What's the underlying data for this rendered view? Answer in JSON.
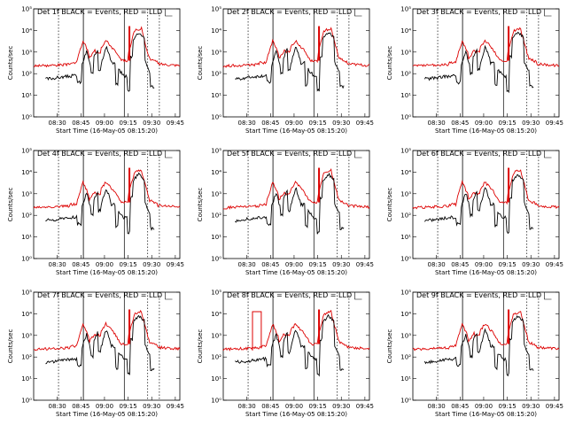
{
  "chart_data": [
    {
      "type": "line",
      "title": "Det 1f BLACK = Events, RED = LLD",
      "ylabel": "Counts/sec",
      "xlabel": "Start Time (16-May-05 08:15:20)",
      "xticks": [
        "08:30",
        "08:45",
        "09:00",
        "09:15",
        "09:30",
        "09:45"
      ],
      "yticks": [
        "10^0",
        "10^1",
        "10^2",
        "10^3",
        "10^4",
        "10^5"
      ],
      "ylim": [
        1,
        100000
      ],
      "yscale": "log",
      "series": [
        {
          "color": "#000000",
          "line": "events"
        },
        {
          "color": "#dd0000",
          "line": "lld"
        }
      ]
    },
    {
      "type": "line",
      "title": "Det 2f BLACK = Events, RED = LLD",
      "ylabel": "Counts/sec",
      "xlabel": "Start Time (16-May-05 08:15:20)",
      "xticks": [
        "08:30",
        "08:45",
        "09:00",
        "09:15",
        "09:30",
        "09:45"
      ],
      "yticks": [
        "10^0",
        "10^1",
        "10^2",
        "10^3",
        "10^4",
        "10^5"
      ],
      "ylim": [
        1,
        100000
      ],
      "yscale": "log",
      "series": [
        {
          "color": "#000000",
          "line": "events"
        },
        {
          "color": "#dd0000",
          "line": "lld"
        }
      ]
    },
    {
      "type": "line",
      "title": "Det 3f BLACK = Events, RED = LLD",
      "ylabel": "Counts/sec",
      "xlabel": "Start Time (16-May-05 08:15:20)",
      "xticks": [
        "08:30",
        "08:45",
        "09:00",
        "09:15",
        "09:30",
        "09:45"
      ],
      "yticks": [
        "10^0",
        "10^1",
        "10^2",
        "10^3",
        "10^4",
        "10^5"
      ],
      "ylim": [
        1,
        100000
      ],
      "yscale": "log",
      "series": [
        {
          "color": "#000000",
          "line": "events"
        },
        {
          "color": "#dd0000",
          "line": "lld"
        }
      ]
    },
    {
      "type": "line",
      "title": "Det 4f BLACK = Events, RED = LLD",
      "ylabel": "Counts/sec",
      "xlabel": "Start Time (16-May-05 08:15:20)",
      "xticks": [
        "08:30",
        "08:45",
        "09:00",
        "09:15",
        "09:30",
        "09:45"
      ],
      "yticks": [
        "10^0",
        "10^1",
        "10^2",
        "10^3",
        "10^4",
        "10^5"
      ],
      "ylim": [
        1,
        100000
      ],
      "yscale": "log",
      "series": [
        {
          "color": "#000000",
          "line": "events"
        },
        {
          "color": "#dd0000",
          "line": "lld"
        }
      ]
    },
    {
      "type": "line",
      "title": "Det 5f BLACK = Events, RED = LLD",
      "ylabel": "Counts/sec",
      "xlabel": "Start Time (16-May-05 08:15:20)",
      "xticks": [
        "08:30",
        "08:45",
        "09:00",
        "09:15",
        "09:30",
        "09:45"
      ],
      "yticks": [
        "10^0",
        "10^1",
        "10^2",
        "10^3",
        "10^4",
        "10^5"
      ],
      "ylim": [
        1,
        100000
      ],
      "yscale": "log",
      "series": [
        {
          "color": "#000000",
          "line": "events"
        },
        {
          "color": "#dd0000",
          "line": "lld"
        }
      ]
    },
    {
      "type": "line",
      "title": "Det 6f BLACK = Events, RED = LLD",
      "ylabel": "Counts/sec",
      "xlabel": "Start Time (16-May-05 08:15:20)",
      "xticks": [
        "08:30",
        "08:45",
        "09:00",
        "09:15",
        "09:30",
        "09:45"
      ],
      "yticks": [
        "10^0",
        "10^1",
        "10^2",
        "10^3",
        "10^4",
        "10^5"
      ],
      "ylim": [
        1,
        100000
      ],
      "yscale": "log",
      "series": [
        {
          "color": "#000000",
          "line": "events"
        },
        {
          "color": "#dd0000",
          "line": "lld"
        }
      ]
    },
    {
      "type": "line",
      "title": "Det 7f BLACK = Events, RED = LLD",
      "ylabel": "Counts/sec",
      "xlabel": "Start Time (16-May-05 08:15:20)",
      "xticks": [
        "08:30",
        "08:45",
        "09:00",
        "09:15",
        "09:30",
        "09:45"
      ],
      "yticks": [
        "10^0",
        "10^1",
        "10^2",
        "10^3",
        "10^4",
        "10^5"
      ],
      "ylim": [
        1,
        100000
      ],
      "yscale": "log",
      "series": [
        {
          "color": "#000000",
          "line": "events"
        },
        {
          "color": "#dd0000",
          "line": "lld"
        }
      ]
    },
    {
      "type": "line",
      "title": "Det 8f BLACK = Events, RED = LLD",
      "ylabel": "Counts/sec",
      "xlabel": "Start Time (16-May-05 08:15:20)",
      "xticks": [
        "08:30",
        "08:45",
        "09:00",
        "09:15",
        "09:30",
        "09:45"
      ],
      "yticks": [
        "10^0",
        "10^1",
        "10^2",
        "10^3",
        "10^4",
        "10^5"
      ],
      "ylim": [
        1,
        100000
      ],
      "yscale": "log",
      "series": [
        {
          "color": "#000000",
          "line": "events"
        },
        {
          "color": "#dd0000",
          "line": "lld"
        }
      ]
    },
    {
      "type": "line",
      "title": "Det 9f BLACK = Events, RED = LLD",
      "ylabel": "Counts/sec",
      "xlabel": "Start Time (16-May-05 08:15:20)",
      "xticks": [
        "08:30",
        "08:45",
        "09:00",
        "09:15",
        "09:30",
        "09:45"
      ],
      "yticks": [
        "10^0",
        "10^1",
        "10^2",
        "10^3",
        "10^4",
        "10^5"
      ],
      "ylim": [
        1,
        100000
      ],
      "yscale": "log",
      "series": [
        {
          "color": "#000000",
          "line": "events"
        },
        {
          "color": "#dd0000",
          "line": "lld"
        }
      ]
    }
  ]
}
